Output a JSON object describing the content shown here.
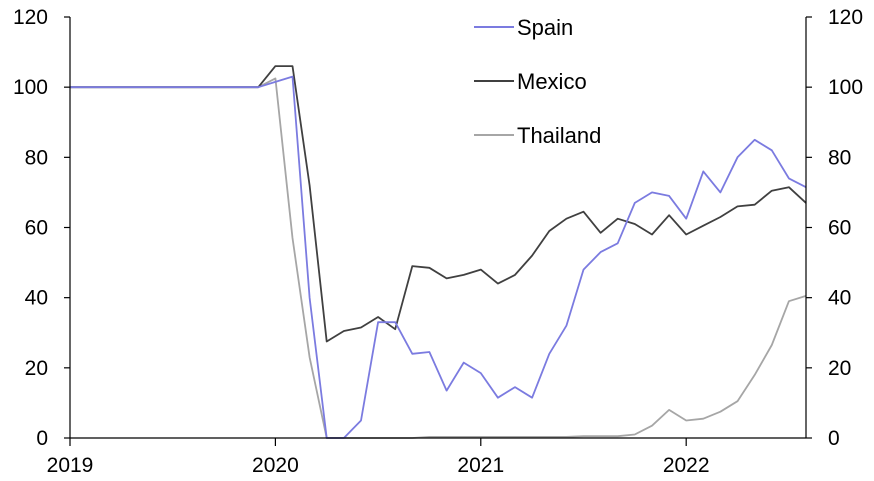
{
  "chart_data": {
    "type": "line",
    "title": "",
    "xlabel": "",
    "ylabel": "",
    "x_start": "2019-01",
    "x_end": "2022-08",
    "x_ticks": [
      "2019",
      "2020",
      "2021",
      "2022"
    ],
    "ylim": [
      0,
      120
    ],
    "y_ticks": [
      "0",
      "20",
      "40",
      "60",
      "80",
      "100",
      "120"
    ],
    "y_right_ticks": [
      "0",
      "20",
      "40",
      "60",
      "80",
      "100",
      "120"
    ],
    "grid": false,
    "legend": "top-center",
    "x": [
      "2019-01",
      "2019-02",
      "2019-03",
      "2019-04",
      "2019-05",
      "2019-06",
      "2019-07",
      "2019-08",
      "2019-09",
      "2019-10",
      "2019-11",
      "2019-12",
      "2020-01",
      "2020-02",
      "2020-03",
      "2020-04",
      "2020-05",
      "2020-06",
      "2020-07",
      "2020-08",
      "2020-09",
      "2020-10",
      "2020-11",
      "2020-12",
      "2021-01",
      "2021-02",
      "2021-03",
      "2021-04",
      "2021-05",
      "2021-06",
      "2021-07",
      "2021-08",
      "2021-09",
      "2021-10",
      "2021-11",
      "2021-12",
      "2022-01",
      "2022-02",
      "2022-03",
      "2022-04",
      "2022-05",
      "2022-06",
      "2022-07",
      "2022-08"
    ],
    "series": [
      {
        "name": "Spain",
        "color": "#7b7be0",
        "values": [
          100,
          100,
          100,
          100,
          100,
          100,
          100,
          100,
          100,
          100,
          100,
          100,
          101.5,
          103,
          40,
          0,
          0,
          5,
          33,
          33,
          24,
          24.5,
          13.5,
          21.5,
          18.5,
          11.5,
          14.5,
          11.5,
          24,
          32,
          48,
          53,
          55.5,
          67,
          70,
          69,
          62.5,
          76,
          70,
          80,
          85,
          82,
          74,
          71.5
        ]
      },
      {
        "name": "Mexico",
        "color": "#404040",
        "values": [
          100,
          100,
          100,
          100,
          100,
          100,
          100,
          100,
          100,
          100,
          100,
          100,
          106,
          106,
          72,
          27.5,
          30.5,
          31.5,
          34.5,
          31,
          49,
          48.5,
          45.5,
          46.5,
          48,
          44,
          46.5,
          52,
          59,
          62.5,
          64.5,
          58.5,
          62.5,
          61,
          58,
          63.5,
          58,
          60.5,
          63,
          66,
          66.5,
          70.5,
          71.5,
          67
        ]
      },
      {
        "name": "Thailand",
        "color": "#a6a6a6",
        "values": [
          100,
          100,
          100,
          100,
          100,
          100,
          100,
          100,
          100,
          100,
          100,
          100,
          102.5,
          57,
          23,
          0,
          0,
          0,
          0,
          0,
          0,
          0.3,
          0.3,
          0.3,
          0.3,
          0.3,
          0.3,
          0.3,
          0.3,
          0.3,
          0.5,
          0.5,
          0.5,
          1,
          3.5,
          8,
          5,
          5.5,
          7.5,
          10.5,
          18,
          26.5,
          39,
          40.5
        ]
      }
    ]
  }
}
